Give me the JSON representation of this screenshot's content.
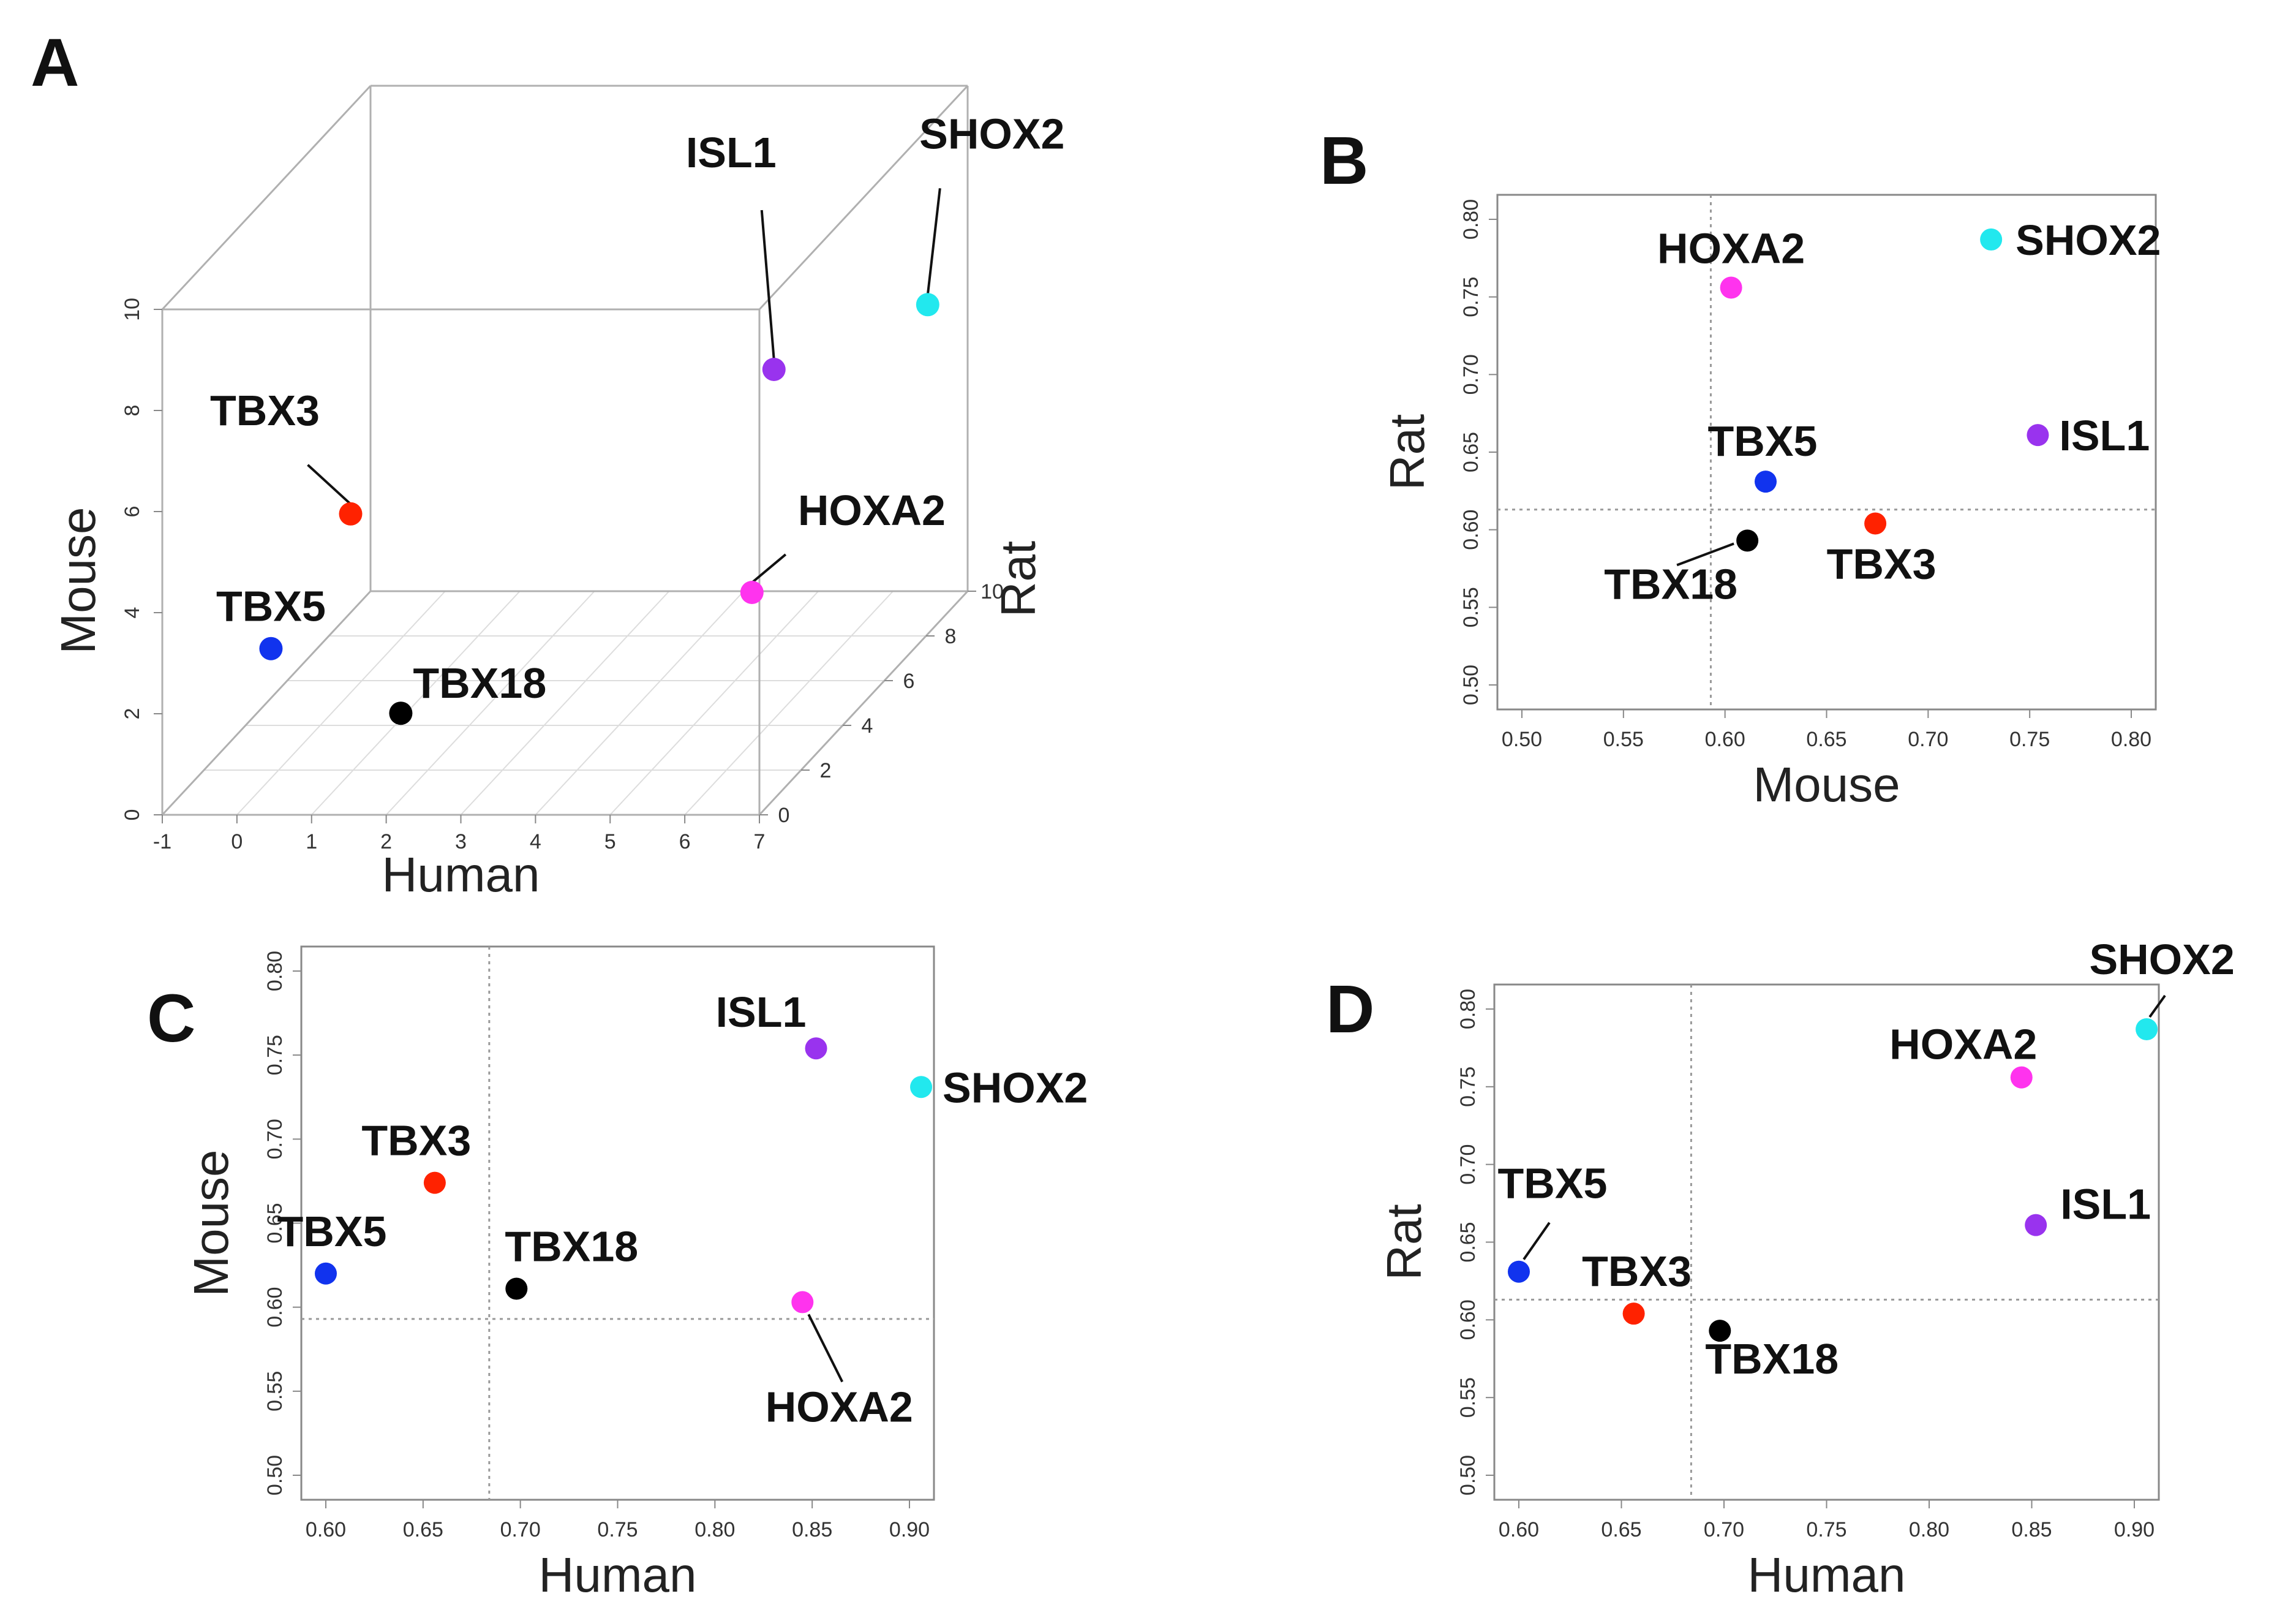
{
  "figure": {
    "panel_labels": [
      "A",
      "B",
      "C",
      "D"
    ]
  },
  "chart_data": [
    {
      "panel": "A",
      "type": "scatter3d",
      "xlabel": "Human",
      "ylabel": "Mouse",
      "zlabel": "Rat",
      "x_ticks": [
        "-1",
        "0",
        "1",
        "2",
        "3",
        "4",
        "5",
        "6",
        "7"
      ],
      "y_ticks": [
        "0",
        "2",
        "4",
        "6",
        "8",
        "10"
      ],
      "z_ticks": [
        "0",
        "2",
        "4",
        "6",
        "8",
        "10"
      ],
      "xlim": [
        -1,
        7
      ],
      "ylim": [
        0,
        10
      ],
      "zlim": [
        0,
        10
      ],
      "points": [
        {
          "label": "ISL1",
          "human": 5.8,
          "mouse": 6.6,
          "rat": 5.0,
          "color": "#9933ee"
        },
        {
          "label": "SHOX2",
          "human": 6.8,
          "mouse": 6.2,
          "rat": 8.8,
          "color": "#22e8ee"
        },
        {
          "label": "TBX3",
          "human": 1.3,
          "mouse": 5.6,
          "rat": 0.8,
          "color": "#ff2200"
        },
        {
          "label": "HOXA2",
          "human": 6.9,
          "mouse": 4.4,
          "rat": 0.0,
          "color": "#ff33ee"
        },
        {
          "label": "TBX5",
          "human": 0.4,
          "mouse": 3.2,
          "rat": 0.2,
          "color": "#1133ee"
        },
        {
          "label": "TBX18",
          "human": 2.0,
          "mouse": 1.7,
          "rat": 0.7,
          "color": "#000000"
        }
      ]
    },
    {
      "panel": "B",
      "type": "scatter",
      "xlabel": "Mouse",
      "ylabel": "Rat",
      "xlim": [
        0.5,
        0.8
      ],
      "ylim": [
        0.5,
        0.8
      ],
      "x_ticks": [
        "0.50",
        "0.55",
        "0.60",
        "0.65",
        "0.70",
        "0.75",
        "0.80"
      ],
      "y_ticks": [
        "0.50",
        "0.55",
        "0.60",
        "0.65",
        "0.70",
        "0.75",
        "0.80"
      ],
      "vline": 0.593,
      "hline": 0.613,
      "points": [
        {
          "label": "SHOX2",
          "x": 0.731,
          "y": 0.787,
          "color": "#22e8ee"
        },
        {
          "label": "HOXA2",
          "x": 0.603,
          "y": 0.756,
          "color": "#ff33ee"
        },
        {
          "label": "ISL1",
          "x": 0.754,
          "y": 0.661,
          "color": "#9933ee"
        },
        {
          "label": "TBX5",
          "x": 0.62,
          "y": 0.631,
          "color": "#1133ee"
        },
        {
          "label": "TBX3",
          "x": 0.674,
          "y": 0.604,
          "color": "#ff2200"
        },
        {
          "label": "TBX18",
          "x": 0.611,
          "y": 0.593,
          "color": "#000000"
        }
      ]
    },
    {
      "panel": "C",
      "type": "scatter",
      "xlabel": "Human",
      "ylabel": "Mouse",
      "xlim": [
        0.6,
        0.9
      ],
      "ylim": [
        0.5,
        0.8
      ],
      "x_ticks": [
        "0.60",
        "0.65",
        "0.70",
        "0.75",
        "0.80",
        "0.85",
        "0.90"
      ],
      "y_ticks": [
        "0.50",
        "0.55",
        "0.60",
        "0.65",
        "0.70",
        "0.75",
        "0.80"
      ],
      "vline": 0.684,
      "hline": 0.593,
      "points": [
        {
          "label": "ISL1",
          "x": 0.852,
          "y": 0.754,
          "color": "#9933ee"
        },
        {
          "label": "SHOX2",
          "x": 0.906,
          "y": 0.731,
          "color": "#22e8ee"
        },
        {
          "label": "TBX3",
          "x": 0.656,
          "y": 0.674,
          "color": "#ff2200"
        },
        {
          "label": "TBX5",
          "x": 0.6,
          "y": 0.62,
          "color": "#1133ee"
        },
        {
          "label": "TBX18",
          "x": 0.698,
          "y": 0.611,
          "color": "#000000"
        },
        {
          "label": "HOXA2",
          "x": 0.845,
          "y": 0.603,
          "color": "#ff33ee"
        }
      ]
    },
    {
      "panel": "D",
      "type": "scatter",
      "xlabel": "Human",
      "ylabel": "Rat",
      "xlim": [
        0.6,
        0.9
      ],
      "ylim": [
        0.5,
        0.8
      ],
      "x_ticks": [
        "0.60",
        "0.65",
        "0.70",
        "0.75",
        "0.80",
        "0.85",
        "0.90"
      ],
      "y_ticks": [
        "0.50",
        "0.55",
        "0.60",
        "0.65",
        "0.70",
        "0.75",
        "0.80"
      ],
      "vline": 0.684,
      "hline": 0.613,
      "points": [
        {
          "label": "SHOX2",
          "x": 0.906,
          "y": 0.787,
          "color": "#22e8ee"
        },
        {
          "label": "HOXA2",
          "x": 0.845,
          "y": 0.756,
          "color": "#ff33ee"
        },
        {
          "label": "ISL1",
          "x": 0.852,
          "y": 0.661,
          "color": "#9933ee"
        },
        {
          "label": "TBX5",
          "x": 0.6,
          "y": 0.631,
          "color": "#1133ee"
        },
        {
          "label": "TBX3",
          "x": 0.656,
          "y": 0.604,
          "color": "#ff2200"
        },
        {
          "label": "TBX18",
          "x": 0.698,
          "y": 0.593,
          "color": "#000000"
        }
      ]
    }
  ]
}
